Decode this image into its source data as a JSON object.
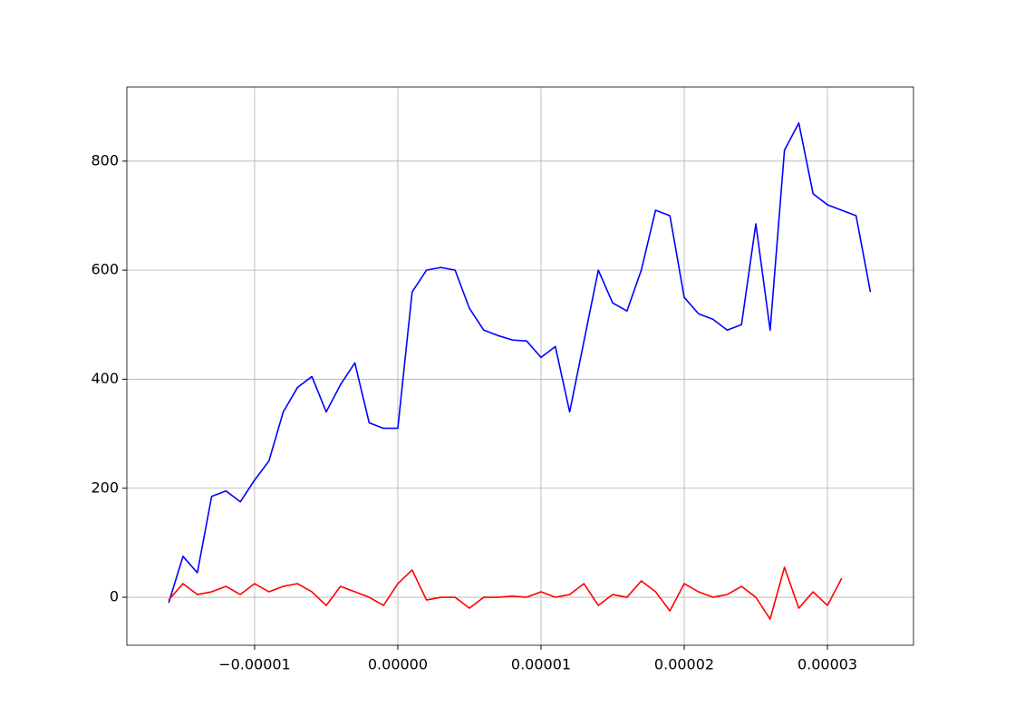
{
  "chart_data": {
    "type": "line",
    "x": [
      -1.6e-05,
      -1.5e-05,
      -1.4e-05,
      -1.3e-05,
      -1.2e-05,
      -1.1e-05,
      -1e-05,
      -9e-06,
      -8e-06,
      -7e-06,
      -6e-06,
      -5e-06,
      -4e-06,
      -3e-06,
      -2e-06,
      -1e-06,
      0,
      1e-06,
      2e-06,
      3e-06,
      4e-06,
      5e-06,
      6e-06,
      7e-06,
      8e-06,
      9e-06,
      1e-05,
      1.1e-05,
      1.2e-05,
      1.3e-05,
      1.4e-05,
      1.5e-05,
      1.6e-05,
      1.7e-05,
      1.8e-05,
      1.9e-05,
      2e-05,
      2.1e-05,
      2.2e-05,
      2.3e-05,
      2.4e-05,
      2.5e-05,
      2.6e-05,
      2.7e-05,
      2.8e-05,
      2.9e-05,
      3e-05,
      3.1e-05,
      3.2e-05,
      3.3e-05
    ],
    "series": [
      {
        "color": "#0000ff",
        "values": [
          -10,
          75,
          45,
          185,
          195,
          175,
          215,
          250,
          340,
          385,
          405,
          340,
          390,
          430,
          320,
          310,
          310,
          560,
          600,
          605,
          600,
          530,
          490,
          480,
          472,
          470,
          440,
          460,
          340,
          470,
          600,
          540,
          525,
          600,
          710,
          700,
          550,
          520,
          510,
          490,
          500,
          685,
          490,
          820,
          870,
          740,
          720,
          710,
          700,
          560
        ]
      },
      {
        "color": "#ff0000",
        "values": [
          -5,
          25,
          5,
          10,
          20,
          5,
          25,
          10,
          20,
          25,
          10,
          -15,
          20,
          10,
          0,
          -15,
          25,
          50,
          -5,
          0,
          0,
          -20,
          0,
          0,
          2,
          0,
          10,
          0,
          5,
          25,
          -15,
          5,
          0,
          30,
          10,
          -25,
          25,
          10,
          0,
          5,
          20,
          0,
          -40,
          55,
          -20,
          10,
          -15,
          35,
          null,
          null
        ]
      }
    ],
    "xlim": [
      -1.892e-05,
      3.601e-05
    ],
    "ylim": [
      -88,
      936
    ],
    "xticks": [
      {
        "value": -1e-05,
        "label": "−0.00001"
      },
      {
        "value": 0,
        "label": "0.00000"
      },
      {
        "value": 1e-05,
        "label": "0.00001"
      },
      {
        "value": 2e-05,
        "label": "0.00002"
      },
      {
        "value": 3e-05,
        "label": "0.00003"
      }
    ],
    "yticks": [
      0,
      200,
      400,
      600,
      800
    ],
    "grid": true
  }
}
